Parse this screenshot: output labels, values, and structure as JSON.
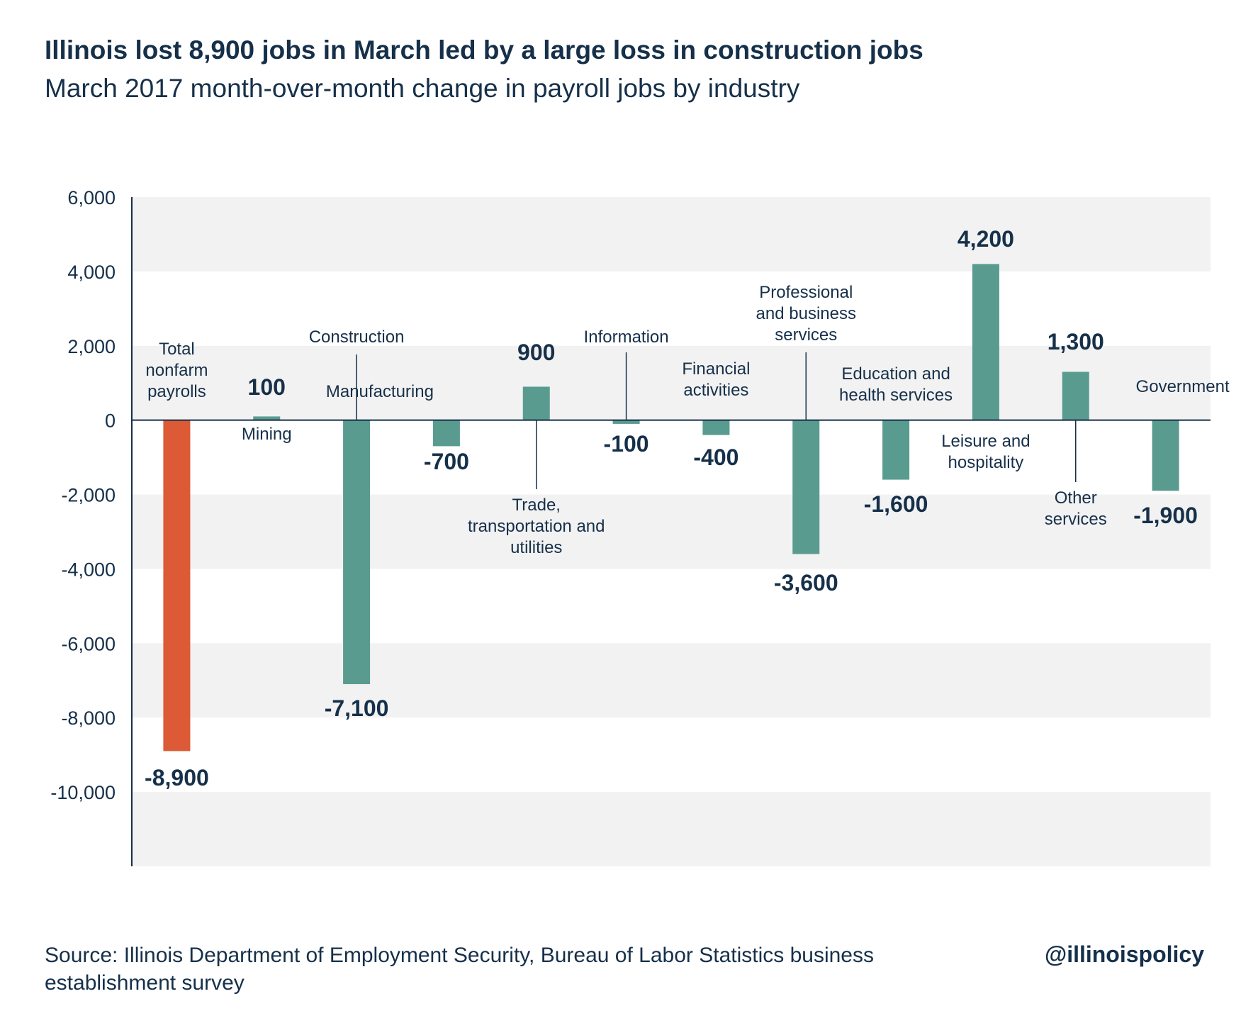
{
  "title": "Illinois lost 8,900 jobs in March led by a large loss in construction jobs",
  "subtitle": "March 2017 month-over-month change in payroll jobs by industry",
  "source": "Source: Illinois Department of Employment Security, Bureau of Labor Statistics business establishment survey",
  "handle": "@illinoispolicy",
  "colors": {
    "highlight": "#dc5a35",
    "bar": "#5a9b90",
    "band": "#f2f2f2",
    "text": "#16304a"
  },
  "chart_data": {
    "type": "bar",
    "ylim": [
      -12000,
      6000
    ],
    "yticks": [
      6000,
      4000,
      2000,
      0,
      -2000,
      -4000,
      -6000,
      -8000,
      -10000
    ],
    "ytick_labels": [
      "6,000",
      "4,000",
      "2,000",
      "0",
      "-2,000",
      "-4,000",
      "-6,000",
      "-8,000",
      "-10,000"
    ],
    "grid": "alternating horizontal bands",
    "legend": "none",
    "categories": [
      [
        "Total",
        "nonfarm",
        "payrolls"
      ],
      [
        "Mining"
      ],
      [
        "Construction"
      ],
      [
        "Manufacturing"
      ],
      [
        "Trade,",
        "transportation and",
        "utilities"
      ],
      [
        "Information"
      ],
      [
        "Financial",
        "activities"
      ],
      [
        "Professional",
        "and business",
        "services"
      ],
      [
        "Education and",
        "health services"
      ],
      [
        "Leisure and",
        "hospitality"
      ],
      [
        "Other",
        "services"
      ],
      [
        "Government"
      ]
    ],
    "values": [
      -8900,
      100,
      -7100,
      -700,
      900,
      -100,
      -400,
      -3600,
      -1600,
      4200,
      1300,
      -1900
    ],
    "value_labels": [
      "-8,900",
      "100",
      "-7,100",
      "-700",
      "900",
      "-100",
      "-400",
      "-3,600",
      "-1,600",
      "4,200",
      "1,300",
      "-1,900"
    ],
    "highlight_index": 0
  }
}
